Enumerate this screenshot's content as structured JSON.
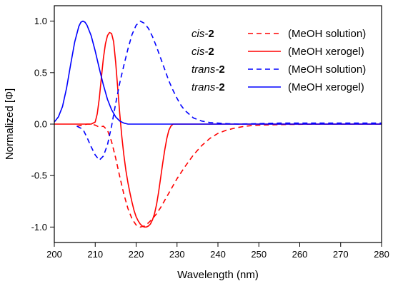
{
  "chart_data": {
    "type": "line",
    "title": "",
    "xlabel": "Wavelength (nm)",
    "ylabel": "Normalized [Φ]",
    "xlim": [
      200,
      280
    ],
    "ylim": [
      -1.15,
      1.15
    ],
    "x_ticks": [
      200,
      210,
      220,
      230,
      240,
      250,
      260,
      270,
      280
    ],
    "y_ticks": [
      1.0,
      0.5,
      0.0,
      -0.5,
      -1.0
    ],
    "x_tick_labels": [
      "200",
      "210",
      "220",
      "230",
      "240",
      "250",
      "260",
      "270",
      "280"
    ],
    "y_tick_labels": [
      "1.0",
      "0.5",
      "0.0",
      "-0.5",
      "-1.0"
    ],
    "legend_position": "top-right",
    "grid": false,
    "series": [
      {
        "key": "cis_sol",
        "name_italic": "cis-",
        "name_bold": "2",
        "description": "(MeOH solution)",
        "color": "#ff0000",
        "dash": true,
        "x": [
          205.5,
          207,
          208,
          209,
          210,
          211,
          212,
          213,
          214,
          215,
          216,
          217,
          218,
          219,
          220,
          221,
          222,
          223,
          224,
          225,
          226,
          227,
          228,
          229,
          230,
          232,
          234,
          236,
          238,
          240,
          242,
          244,
          246,
          248,
          250,
          255,
          260,
          265,
          270,
          275,
          280
        ],
        "y": [
          -0.02,
          -0.01,
          0.0,
          0.0,
          -0.01,
          -0.03,
          -0.02,
          -0.06,
          -0.17,
          -0.33,
          -0.51,
          -0.68,
          -0.82,
          -0.92,
          -0.98,
          -1.0,
          -0.99,
          -0.96,
          -0.92,
          -0.87,
          -0.81,
          -0.74,
          -0.67,
          -0.6,
          -0.53,
          -0.41,
          -0.3,
          -0.21,
          -0.14,
          -0.09,
          -0.06,
          -0.04,
          -0.025,
          -0.015,
          -0.01,
          -0.005,
          -0.002,
          0.0,
          0.0,
          0.0,
          0.0
        ]
      },
      {
        "key": "cis_xero",
        "name_italic": "cis-",
        "name_bold": "2",
        "description": "(MeOH xerogel)",
        "color": "#ff0000",
        "dash": false,
        "x": [
          200,
          209,
          210,
          210.5,
          211,
          211.5,
          212,
          212.5,
          213,
          213.5,
          214,
          214.5,
          215,
          215.5,
          216,
          216.5,
          217,
          217.5,
          218,
          218.5,
          219,
          219.5,
          220,
          220.5,
          221,
          221.5,
          222,
          222.5,
          223,
          223.5,
          224,
          224.5,
          225,
          225.5,
          226,
          226.5,
          227,
          227.5,
          228,
          228.5,
          229,
          240,
          250,
          260,
          270,
          280
        ],
        "y": [
          0.0,
          0.0,
          0.02,
          0.1,
          0.25,
          0.45,
          0.64,
          0.78,
          0.86,
          0.89,
          0.88,
          0.8,
          0.6,
          0.35,
          0.1,
          -0.12,
          -0.3,
          -0.45,
          -0.57,
          -0.67,
          -0.76,
          -0.84,
          -0.9,
          -0.94,
          -0.97,
          -0.99,
          -1.0,
          -1.0,
          -0.99,
          -0.97,
          -0.93,
          -0.87,
          -0.78,
          -0.66,
          -0.52,
          -0.38,
          -0.25,
          -0.14,
          -0.06,
          -0.02,
          0.0,
          0.0,
          0.0,
          0.0,
          0.0,
          0.0
        ]
      },
      {
        "key": "trans_sol",
        "name_italic": "trans-",
        "name_bold": "2",
        "description": "(MeOH solution)",
        "color": "#0000ff",
        "dash": true,
        "x": [
          205.5,
          207,
          208,
          209,
          210,
          211,
          212,
          213,
          214,
          215,
          216,
          217,
          218,
          219,
          220,
          221,
          222,
          223,
          224,
          225,
          226,
          227,
          228,
          229,
          230,
          231,
          232,
          234,
          236,
          238,
          240,
          242,
          245,
          250,
          255,
          260,
          265,
          270,
          275,
          280
        ],
        "y": [
          -0.02,
          -0.05,
          -0.13,
          -0.22,
          -0.3,
          -0.35,
          -0.31,
          -0.2,
          -0.02,
          0.2,
          0.4,
          0.57,
          0.73,
          0.87,
          0.96,
          1.0,
          0.98,
          0.93,
          0.85,
          0.75,
          0.64,
          0.53,
          0.42,
          0.33,
          0.25,
          0.18,
          0.13,
          0.06,
          0.03,
          0.015,
          0.01,
          0.005,
          0.0,
          0.005,
          0.01,
          0.01,
          0.01,
          0.01,
          0.01,
          0.01
        ]
      },
      {
        "key": "trans_xero",
        "name_italic": "trans-",
        "name_bold": "2",
        "description": "(MeOH xerogel)",
        "color": "#0000ff",
        "dash": false,
        "x": [
          200,
          201,
          202,
          203,
          204,
          205,
          206,
          206.5,
          207,
          207.5,
          208,
          209,
          210,
          211,
          212,
          213,
          214,
          215,
          216,
          217,
          218,
          219,
          220,
          230,
          240,
          250,
          260,
          270,
          280
        ],
        "y": [
          0.02,
          0.07,
          0.17,
          0.35,
          0.58,
          0.8,
          0.95,
          0.99,
          1.0,
          0.99,
          0.96,
          0.86,
          0.71,
          0.54,
          0.38,
          0.24,
          0.14,
          0.07,
          0.03,
          0.01,
          0.0,
          0.0,
          0.0,
          0.0,
          0.0,
          0.0,
          0.0,
          0.0,
          0.0
        ]
      }
    ]
  }
}
